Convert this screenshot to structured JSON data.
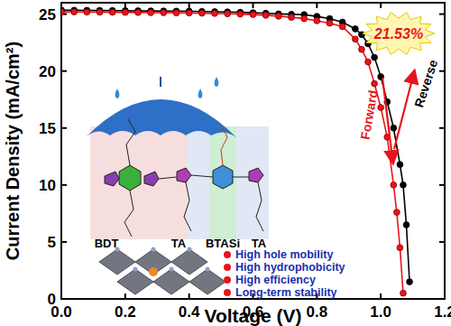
{
  "chart_data": {
    "type": "line",
    "x_label": "Voltage (V)",
    "y_label": "Current Density (mA/cm²)",
    "xlim": [
      0,
      1.2
    ],
    "ylim": [
      0,
      26
    ],
    "xticks": [
      {
        "value": 0,
        "label": "0.0"
      },
      0.2,
      0.4,
      0.6,
      0.8,
      {
        "value": 1,
        "label": "1.0"
      },
      1.2
    ],
    "yticks": [
      0,
      5,
      10,
      15,
      20,
      25
    ],
    "grid": false,
    "series": [
      {
        "name": "Reverse",
        "color": "#000000",
        "marker": "circle",
        "line_style": "solid",
        "x": [
          0,
          0.04,
          0.08,
          0.12,
          0.16,
          0.2,
          0.24,
          0.28,
          0.32,
          0.36,
          0.4,
          0.44,
          0.48,
          0.52,
          0.56,
          0.6,
          0.64,
          0.68,
          0.72,
          0.76,
          0.8,
          0.84,
          0.88,
          0.92,
          0.94,
          0.96,
          0.98,
          1.0,
          1.02,
          1.04,
          1.06,
          1.07,
          1.08,
          1.09
        ],
        "values": [
          25.35,
          25.34,
          25.33,
          25.32,
          25.31,
          25.3,
          25.29,
          25.28,
          25.27,
          25.26,
          25.25,
          25.23,
          25.21,
          25.19,
          25.16,
          25.12,
          25.07,
          25.02,
          24.98,
          24.95,
          24.8,
          24.6,
          24.3,
          23.7,
          23.2,
          22.4,
          21.2,
          19.5,
          17.3,
          15.0,
          11.8,
          10.0,
          6.5,
          1.5
        ]
      },
      {
        "name": "Forward",
        "color": "#e8141b",
        "marker": "circle",
        "line_style": "solid",
        "x": [
          0,
          0.04,
          0.08,
          0.12,
          0.16,
          0.2,
          0.24,
          0.28,
          0.32,
          0.36,
          0.4,
          0.44,
          0.48,
          0.52,
          0.56,
          0.6,
          0.64,
          0.68,
          0.72,
          0.76,
          0.8,
          0.84,
          0.88,
          0.92,
          0.94,
          0.96,
          0.98,
          1.0,
          1.02,
          1.04,
          1.05,
          1.06,
          1.07
        ],
        "values": [
          25.2,
          25.19,
          25.18,
          25.17,
          25.16,
          25.15,
          25.14,
          25.13,
          25.12,
          25.11,
          25.1,
          25.08,
          25.06,
          25.03,
          25.0,
          24.96,
          24.9,
          24.82,
          24.72,
          24.6,
          24.42,
          24.2,
          23.9,
          22.8,
          21.9,
          20.8,
          18.9,
          16.8,
          14.2,
          10.0,
          7.6,
          4.5,
          0.5
        ]
      }
    ],
    "annotations": [
      "21.53%",
      "BDT",
      "TA",
      "BTASi",
      "TA",
      "High hole mobility",
      "High hydrophobicity",
      "High efficiency",
      "Long-term stability"
    ]
  }
}
